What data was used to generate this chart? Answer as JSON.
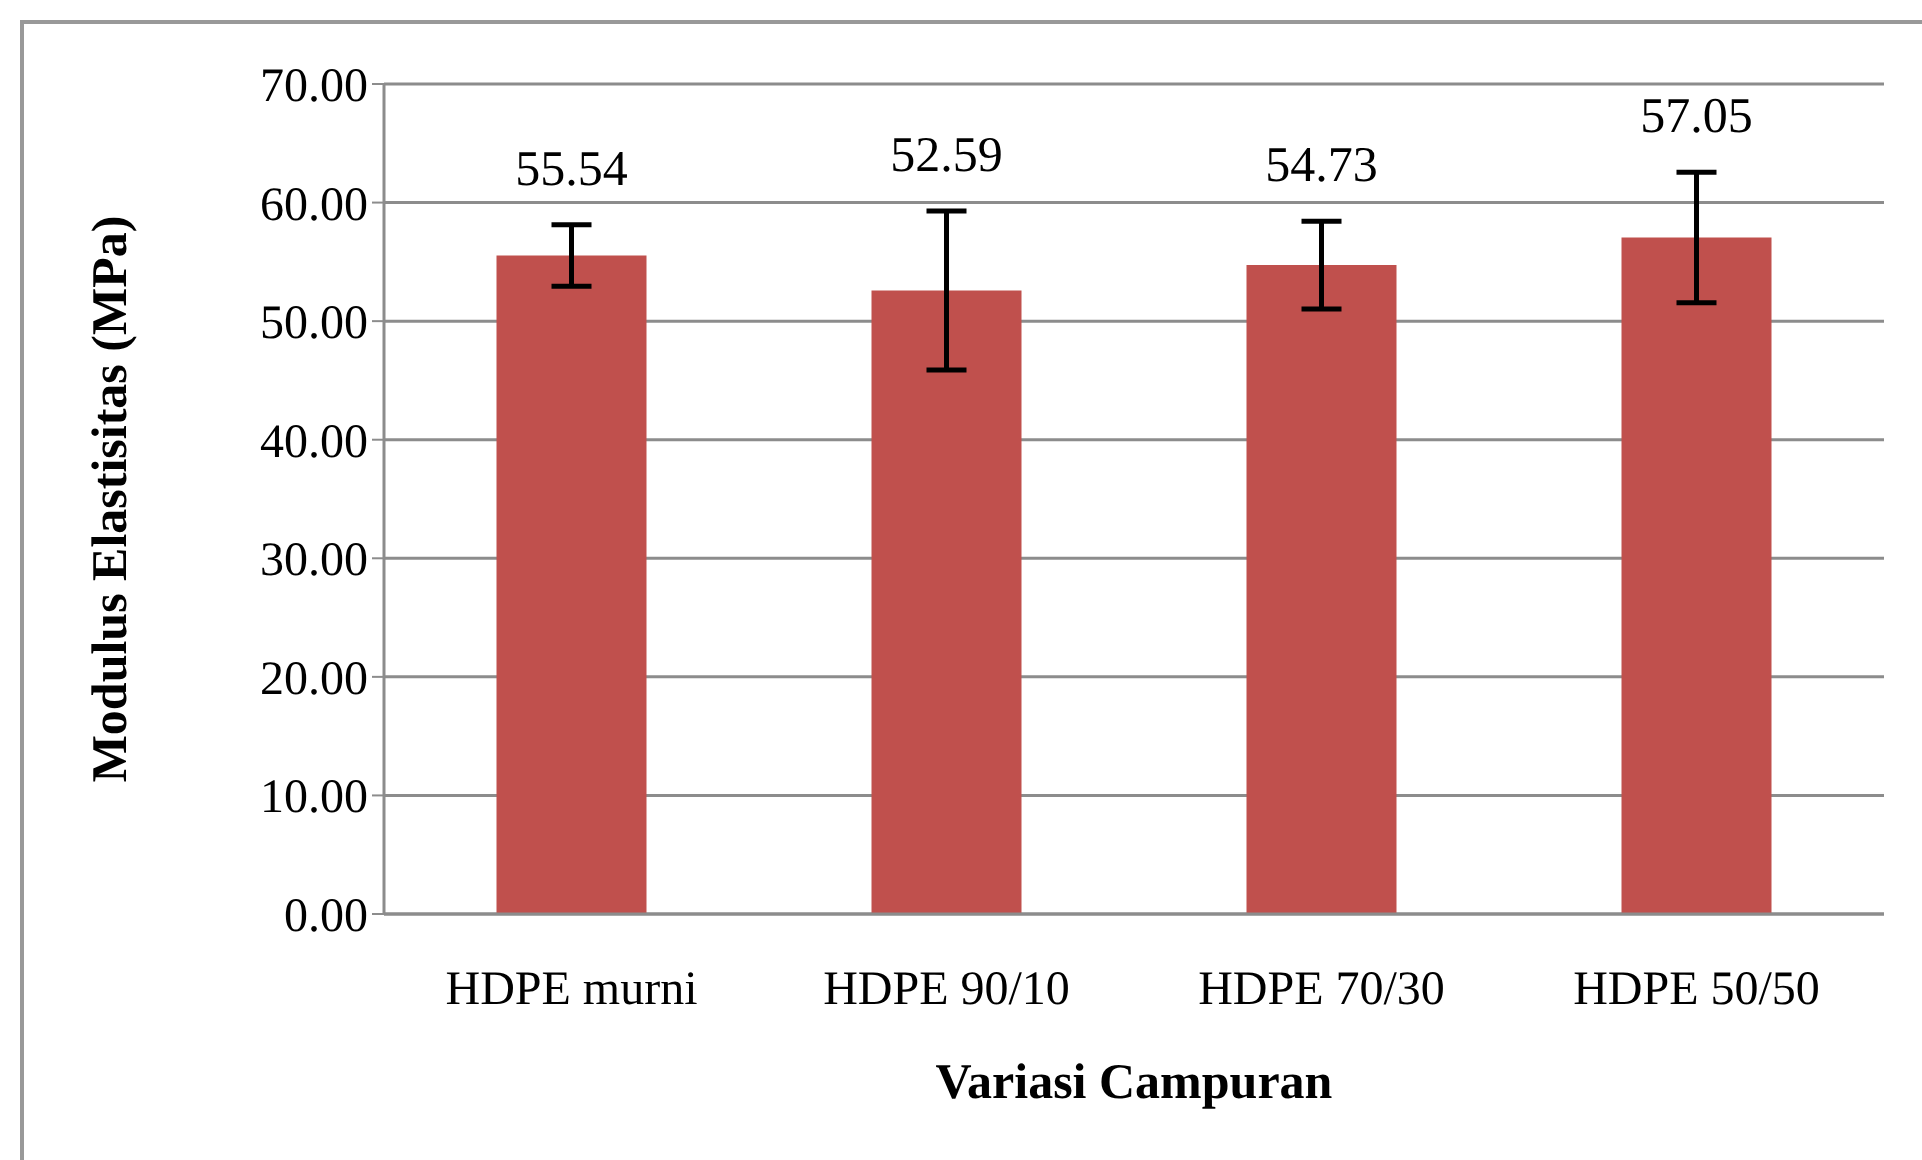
{
  "chart_data": {
    "type": "bar",
    "xlabel": "Variasi Campuran",
    "ylabel": "Modulus Elastisitas (MPa)",
    "categories": [
      "HDPE murni",
      "HDPE 90/10",
      "HDPE 70/30",
      "HDPE 50/50"
    ],
    "values": [
      55.54,
      52.59,
      54.73,
      57.05
    ],
    "errors": [
      2.6,
      6.7,
      3.7,
      5.5
    ],
    "color": "#c0504d",
    "ylim": [
      0,
      70
    ],
    "yticks": [
      {
        "value": 0,
        "label": "0.00"
      },
      {
        "value": 10,
        "label": "10.00"
      },
      {
        "value": 20,
        "label": "20.00"
      },
      {
        "value": 30,
        "label": "30.00"
      },
      {
        "value": 40,
        "label": "40.00"
      },
      {
        "value": 50,
        "label": "50.00"
      },
      {
        "value": 60,
        "label": "60.00"
      },
      {
        "value": 70,
        "label": "70.00"
      }
    ],
    "grid": "y",
    "data_labels": true
  }
}
